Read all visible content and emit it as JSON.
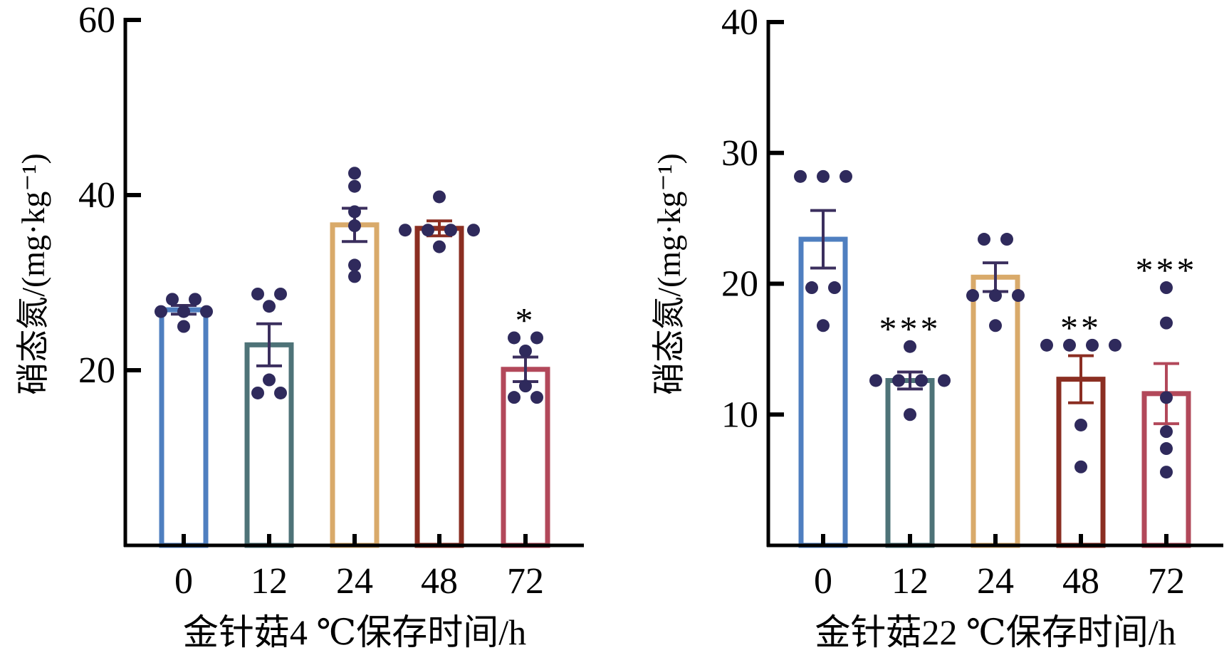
{
  "chart_data": [
    {
      "type": "bar",
      "title": "",
      "xlabel": "金针菇4 ℃保存时间/h",
      "ylabel": "硝态氮/(mg·kg⁻¹)",
      "ylim": [
        0,
        60
      ],
      "yticks": [
        20,
        40,
        60
      ],
      "categories": [
        "0",
        "12",
        "24",
        "48",
        "72"
      ],
      "values": [
        26.9,
        22.9,
        36.6,
        36.2,
        20.1
      ],
      "errors": [
        0.5,
        2.4,
        1.9,
        0.85,
        1.4
      ],
      "significance": [
        "",
        "",
        "",
        "",
        "*"
      ],
      "points": [
        [
          28.1,
          28.1,
          26.7,
          26.7,
          26.7,
          25.0
        ],
        [
          28.7,
          28.7,
          27.3,
          18.9,
          17.4,
          17.4
        ],
        [
          42.5,
          41.0,
          38.1,
          36.5,
          32.0,
          30.7
        ],
        [
          39.8,
          36.0,
          36.0,
          36.0,
          36.0,
          34.1
        ],
        [
          23.7,
          23.7,
          22.2,
          18.2,
          16.9,
          16.9
        ]
      ],
      "colors": [
        "#4f7fc0",
        "#4e7378",
        "#d9aa6a",
        "#8b2e22",
        "#b2485a"
      ],
      "point_color": "#2f2a5c",
      "grid": false
    },
    {
      "type": "bar",
      "title": "",
      "xlabel": "金针菇22 ℃保存时间/h",
      "ylabel": "硝态氮/(mg·kg⁻¹)",
      "ylim": [
        0,
        40
      ],
      "yticks": [
        10,
        20,
        30,
        40
      ],
      "categories": [
        "0",
        "12",
        "24",
        "48",
        "72"
      ],
      "values": [
        23.4,
        12.6,
        20.5,
        12.7,
        11.6
      ],
      "errors": [
        2.2,
        0.65,
        1.1,
        1.8,
        2.3
      ],
      "significance": [
        "",
        "***",
        "",
        "**",
        "***"
      ],
      "points": [
        [
          28.2,
          28.2,
          28.2,
          19.7,
          19.7,
          16.8
        ],
        [
          15.2,
          12.6,
          12.6,
          12.6,
          12.6,
          10.0
        ],
        [
          23.4,
          23.4,
          19.1,
          19.1,
          19.1,
          16.8
        ],
        [
          15.3,
          15.3,
          15.3,
          15.3,
          9.2,
          6.0
        ],
        [
          19.7,
          17.0,
          11.3,
          8.7,
          7.4,
          5.6
        ]
      ],
      "colors": [
        "#4f7fc0",
        "#4e7378",
        "#d9aa6a",
        "#8b2e22",
        "#b2485a"
      ],
      "point_color": "#2f2a5c",
      "grid": false
    }
  ]
}
